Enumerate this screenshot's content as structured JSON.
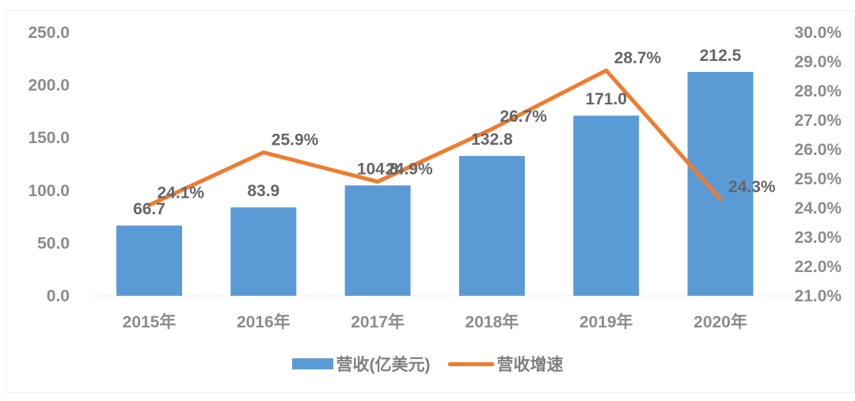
{
  "chart_data": {
    "type": "bar+line",
    "title": "",
    "categories": [
      "2015年",
      "2016年",
      "2017年",
      "2018年",
      "2019年",
      "2020年"
    ],
    "series": [
      {
        "name": "营收(亿美元)",
        "type": "bar",
        "axis": "left",
        "color": "#5b9bd5",
        "values": [
          66.7,
          83.9,
          104.8,
          132.8,
          171.0,
          212.5
        ],
        "labels": [
          "66.7",
          "83.9",
          "104.8",
          "132.8",
          "171.0",
          "212.5"
        ]
      },
      {
        "name": "营收增速",
        "type": "line",
        "axis": "right",
        "color": "#ed7d31",
        "values": [
          24.1,
          25.9,
          24.9,
          26.7,
          28.7,
          24.3
        ],
        "labels": [
          "24.1%",
          "25.9%",
          "24.9%",
          "26.7%",
          "28.7%",
          "24.3%"
        ]
      }
    ],
    "y_left": {
      "min": 0,
      "max": 250,
      "step": 50,
      "ticks": [
        "0.0",
        "50.0",
        "100.0",
        "150.0",
        "200.0",
        "250.0"
      ]
    },
    "y_right": {
      "min": 21,
      "max": 30,
      "step": 1,
      "ticks": [
        "21.0%",
        "22.0%",
        "23.0%",
        "24.0%",
        "25.0%",
        "26.0%",
        "27.0%",
        "28.0%",
        "29.0%",
        "30.0%"
      ]
    },
    "xlabel": "",
    "ylabel": "",
    "grid": false,
    "legend_position": "bottom"
  },
  "legend": {
    "bar_label": "营收(亿美元)",
    "line_label": "营收增速",
    "bar_color": "#5b9bd5",
    "line_color": "#ed7d31"
  }
}
